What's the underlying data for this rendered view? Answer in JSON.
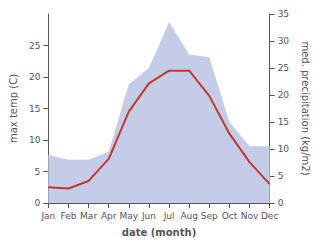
{
  "chart_data": {
    "type": "line",
    "categories": [
      "Jan",
      "Feb",
      "Mar",
      "Apr",
      "May",
      "Jun",
      "Jul",
      "Aug",
      "Sep",
      "Oct",
      "Nov",
      "Dec"
    ],
    "series": [
      {
        "type": "area",
        "axis": "y2",
        "color": "#c5cce8",
        "values": [
          9.0,
          8.0,
          8.0,
          9.5,
          22.0,
          25.0,
          33.5,
          27.5,
          27.0,
          15.0,
          10.5,
          10.5
        ]
      },
      {
        "type": "line",
        "color": "#c0392b",
        "values": [
          2.5,
          2.3,
          3.5,
          7.0,
          14.5,
          19.0,
          21.0,
          21.0,
          17.0,
          11.0,
          6.5,
          3.0
        ]
      }
    ],
    "xlabel": "date (month)",
    "ylabel": "max temp (C)",
    "y2label": "med. precipitation (kg/m2)",
    "ylim": [
      0,
      30
    ],
    "yticks": [
      0,
      5,
      10,
      15,
      20,
      25
    ],
    "y2lim": [
      0,
      35
    ],
    "y2ticks": [
      0,
      5,
      10,
      15,
      20,
      25,
      30,
      35
    ],
    "grid": false
  }
}
